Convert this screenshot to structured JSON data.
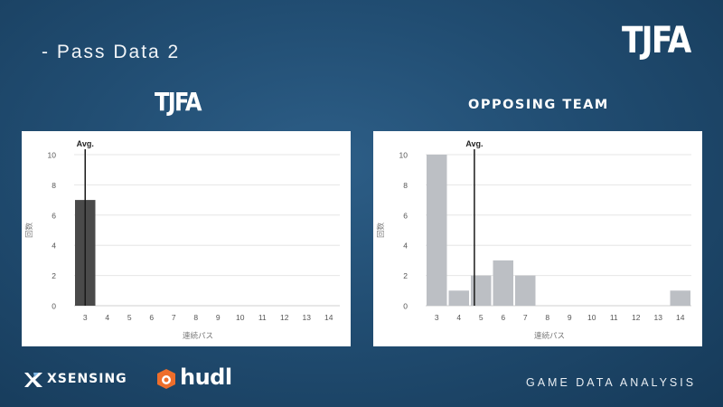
{
  "slide": {
    "title": "-  Pass Data 2",
    "logo_text": "TJFA",
    "footer_right": "GAME DATA ANALYSIS",
    "brand_xsensing": "XSENSING",
    "brand_hudl": "hudl"
  },
  "colors": {
    "background": "#1e4a6e",
    "tjfa_bar": "#4a4a4a",
    "opponent_bar": "#bcbfc4",
    "avg_line": "#1a1a1a"
  },
  "charts": {
    "tjfa": {
      "header_text": "TJFA"
    },
    "opponent": {
      "header_text": "OPPOSING TEAM"
    }
  },
  "chart_data": [
    {
      "type": "bar",
      "categories": [
        "3",
        "4",
        "5",
        "6",
        "7",
        "8",
        "9",
        "10",
        "11",
        "12",
        "13",
        "14"
      ],
      "values": [
        7,
        0,
        0,
        0,
        0,
        0,
        0,
        0,
        0,
        0,
        0,
        0
      ],
      "xlabel": "連続パス",
      "ylabel": "回数",
      "ylim": [
        0,
        10
      ],
      "yticks": [
        0,
        2,
        4,
        6,
        8,
        10
      ],
      "avg_label": "Avg.",
      "avg_value": 3,
      "grid": true,
      "bar_color": "#4a4a4a"
    },
    {
      "type": "bar",
      "categories": [
        "3",
        "4",
        "5",
        "6",
        "7",
        "8",
        "9",
        "10",
        "11",
        "12",
        "13",
        "14"
      ],
      "values": [
        10,
        1,
        2,
        3,
        2,
        0,
        0,
        0,
        0,
        0,
        0,
        1
      ],
      "xlabel": "連続パス",
      "ylabel": "回数",
      "ylim": [
        0,
        10
      ],
      "yticks": [
        0,
        2,
        4,
        6,
        8,
        10
      ],
      "avg_label": "Avg.",
      "avg_value": 4.7,
      "grid": true,
      "bar_color": "#bcbfc4"
    }
  ]
}
